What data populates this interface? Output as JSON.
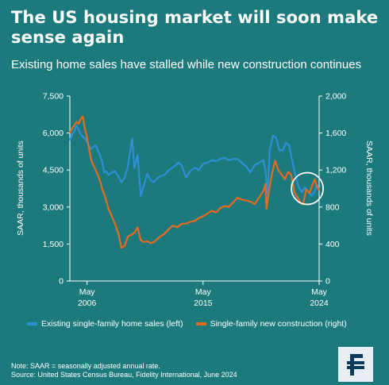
{
  "title": "The US housing market will soon make sense again",
  "subtitle": "Existing home sales have stalled while new construction continues",
  "colors": {
    "background": "#1d7a7c",
    "existing_series": "#2e8fd6",
    "new_series": "#e86a1f",
    "text": "#ffffff",
    "logo_bg": "#e8eef3",
    "logo_fg": "#0b3a5a"
  },
  "legend": {
    "existing": "Existing single-family home sales (left)",
    "new": "Single-family new construction (right)"
  },
  "footer": {
    "note": "Note: SAAR = seasonally adjusted annual rate.",
    "source": "Source: United States Census Bureau, Fidelity International, June 2024"
  },
  "logo_icon": "fidelity-logo",
  "chart_data": {
    "type": "line",
    "title": "",
    "ylabel_left": "SAAR, thousands of units",
    "ylabel_right": "SAAR, thousands of units",
    "ylim_left": [
      0,
      7500
    ],
    "ylim_right": [
      0,
      2000
    ],
    "yticks_left": [
      "0",
      "1,500",
      "3,000",
      "4,500",
      "6,000",
      "7,500"
    ],
    "yticks_right": [
      "0",
      "400",
      "800",
      "1,200",
      "1,600",
      "2,000"
    ],
    "xlim": [
      "2005-01",
      "2024-05"
    ],
    "xticks": [
      {
        "date": "2006-05",
        "label": [
          "May",
          "2006"
        ]
      },
      {
        "date": "2015-05",
        "label": [
          "May",
          "2015"
        ]
      },
      {
        "date": "2024-05",
        "label": [
          "May",
          "2024"
        ]
      }
    ],
    "grid": false,
    "legend_position": "bottom",
    "highlight_circle": {
      "date": "2023-06",
      "value_right": 1000
    },
    "series": [
      {
        "name": "Existing single-family home sales (left)",
        "axis": "left",
        "points": [
          [
            "2005-01",
            5700
          ],
          [
            "2005-03",
            5950
          ],
          [
            "2005-05",
            6050
          ],
          [
            "2005-07",
            6300
          ],
          [
            "2005-09",
            6150
          ],
          [
            "2005-11",
            5950
          ],
          [
            "2006-01",
            5850
          ],
          [
            "2006-03",
            5800
          ],
          [
            "2006-05",
            5650
          ],
          [
            "2006-07",
            5450
          ],
          [
            "2006-09",
            5350
          ],
          [
            "2006-11",
            5450
          ],
          [
            "2007-01",
            5500
          ],
          [
            "2007-03",
            5300
          ],
          [
            "2007-05",
            5100
          ],
          [
            "2007-07",
            4850
          ],
          [
            "2007-09",
            4400
          ],
          [
            "2007-11",
            4450
          ],
          [
            "2008-01",
            4300
          ],
          [
            "2008-04",
            4400
          ],
          [
            "2008-07",
            4450
          ],
          [
            "2008-10",
            4250
          ],
          [
            "2009-01",
            4000
          ],
          [
            "2009-04",
            4200
          ],
          [
            "2009-07",
            4650
          ],
          [
            "2009-11",
            5800
          ],
          [
            "2010-01",
            4600
          ],
          [
            "2010-04",
            5100
          ],
          [
            "2010-07",
            3450
          ],
          [
            "2010-10",
            3900
          ],
          [
            "2011-01",
            4350
          ],
          [
            "2011-04",
            4100
          ],
          [
            "2011-07",
            4000
          ],
          [
            "2011-10",
            4150
          ],
          [
            "2012-01",
            4250
          ],
          [
            "2012-05",
            4300
          ],
          [
            "2012-09",
            4500
          ],
          [
            "2013-01",
            4600
          ],
          [
            "2013-06",
            4800
          ],
          [
            "2013-09",
            4700
          ],
          [
            "2014-01",
            4200
          ],
          [
            "2014-05",
            4450
          ],
          [
            "2014-09",
            4600
          ],
          [
            "2015-01",
            4500
          ],
          [
            "2015-05",
            4750
          ],
          [
            "2015-09",
            4800
          ],
          [
            "2016-01",
            4900
          ],
          [
            "2016-05",
            4850
          ],
          [
            "2016-09",
            4950
          ],
          [
            "2017-01",
            5000
          ],
          [
            "2017-05",
            4900
          ],
          [
            "2017-09",
            4950
          ],
          [
            "2018-01",
            4950
          ],
          [
            "2018-05",
            4800
          ],
          [
            "2018-09",
            4650
          ],
          [
            "2019-01",
            4400
          ],
          [
            "2019-05",
            4700
          ],
          [
            "2019-09",
            4800
          ],
          [
            "2020-01",
            4900
          ],
          [
            "2020-03",
            4500
          ],
          [
            "2020-05",
            3500
          ],
          [
            "2020-07",
            5300
          ],
          [
            "2020-10",
            5900
          ],
          [
            "2021-01",
            5800
          ],
          [
            "2021-04",
            5300
          ],
          [
            "2021-07",
            5300
          ],
          [
            "2021-10",
            5600
          ],
          [
            "2022-01",
            5500
          ],
          [
            "2022-04",
            4850
          ],
          [
            "2022-07",
            4300
          ],
          [
            "2022-10",
            3800
          ],
          [
            "2023-01",
            3600
          ],
          [
            "2023-04",
            3800
          ],
          [
            "2023-07",
            3600
          ],
          [
            "2023-10",
            3450
          ],
          [
            "2024-01",
            3650
          ],
          [
            "2024-03",
            3900
          ],
          [
            "2024-05",
            3700
          ]
        ]
      },
      {
        "name": "Single-family new construction (right)",
        "axis": "right",
        "points": [
          [
            "2005-01",
            1600
          ],
          [
            "2005-03",
            1650
          ],
          [
            "2005-05",
            1680
          ],
          [
            "2005-07",
            1720
          ],
          [
            "2005-09",
            1700
          ],
          [
            "2005-11",
            1750
          ],
          [
            "2006-01",
            1780
          ],
          [
            "2006-03",
            1650
          ],
          [
            "2006-05",
            1550
          ],
          [
            "2006-07",
            1420
          ],
          [
            "2006-09",
            1300
          ],
          [
            "2006-11",
            1250
          ],
          [
            "2007-01",
            1200
          ],
          [
            "2007-04",
            1120
          ],
          [
            "2007-07",
            1000
          ],
          [
            "2007-10",
            900
          ],
          [
            "2008-01",
            780
          ],
          [
            "2008-04",
            700
          ],
          [
            "2008-07",
            620
          ],
          [
            "2008-10",
            520
          ],
          [
            "2009-01",
            360
          ],
          [
            "2009-04",
            380
          ],
          [
            "2009-07",
            480
          ],
          [
            "2009-10",
            500
          ],
          [
            "2010-01",
            520
          ],
          [
            "2010-04",
            580
          ],
          [
            "2010-07",
            440
          ],
          [
            "2010-10",
            420
          ],
          [
            "2011-01",
            430
          ],
          [
            "2011-04",
            410
          ],
          [
            "2011-07",
            420
          ],
          [
            "2011-10",
            450
          ],
          [
            "2012-01",
            480
          ],
          [
            "2012-05",
            510
          ],
          [
            "2012-09",
            560
          ],
          [
            "2013-01",
            600
          ],
          [
            "2013-05",
            580
          ],
          [
            "2013-09",
            620
          ],
          [
            "2014-01",
            620
          ],
          [
            "2014-05",
            640
          ],
          [
            "2014-09",
            650
          ],
          [
            "2015-01",
            680
          ],
          [
            "2015-05",
            700
          ],
          [
            "2015-09",
            730
          ],
          [
            "2016-01",
            760
          ],
          [
            "2016-05",
            740
          ],
          [
            "2016-09",
            790
          ],
          [
            "2017-01",
            810
          ],
          [
            "2017-05",
            800
          ],
          [
            "2017-09",
            850
          ],
          [
            "2018-01",
            900
          ],
          [
            "2018-05",
            880
          ],
          [
            "2018-09",
            870
          ],
          [
            "2019-01",
            860
          ],
          [
            "2019-05",
            830
          ],
          [
            "2019-09",
            900
          ],
          [
            "2020-01",
            970
          ],
          [
            "2020-03",
            1050
          ],
          [
            "2020-04",
            780
          ],
          [
            "2020-06",
            950
          ],
          [
            "2020-09",
            1150
          ],
          [
            "2020-12",
            1300
          ],
          [
            "2021-03",
            1200
          ],
          [
            "2021-06",
            1150
          ],
          [
            "2021-09",
            1100
          ],
          [
            "2021-12",
            1180
          ],
          [
            "2022-03",
            1150
          ],
          [
            "2022-06",
            960
          ],
          [
            "2022-09",
            900
          ],
          [
            "2022-12",
            840
          ],
          [
            "2023-02",
            830
          ],
          [
            "2023-05",
            990
          ],
          [
            "2023-08",
            950
          ],
          [
            "2023-11",
            1050
          ],
          [
            "2024-01",
            1100
          ],
          [
            "2024-03",
            1020
          ],
          [
            "2024-05",
            980
          ]
        ]
      }
    ]
  }
}
